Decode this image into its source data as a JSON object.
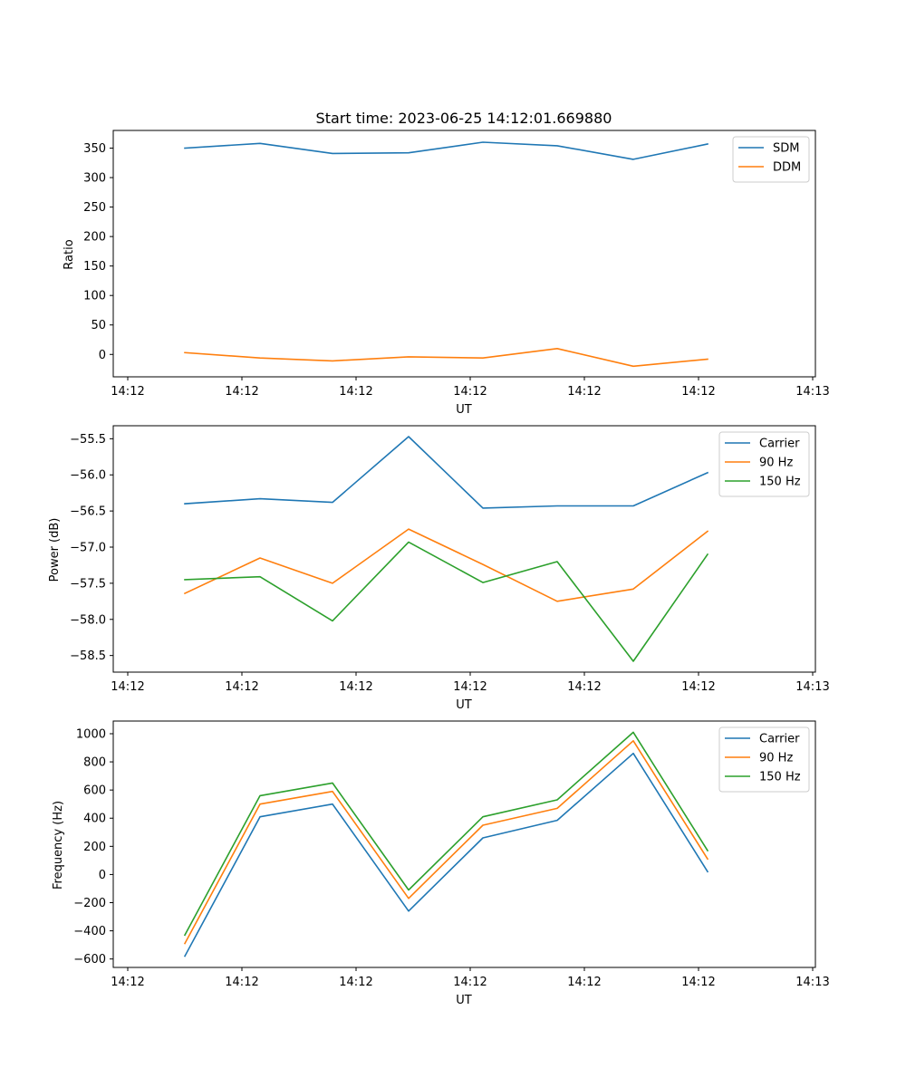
{
  "title": "Start time: 2023-06-25 14:12:01.669880",
  "colors": {
    "blue": "#1f77b4",
    "orange": "#ff7f0e",
    "green": "#2ca02c"
  },
  "chart_data": [
    {
      "type": "line",
      "title": "Start time: 2023-06-25 14:12:01.669880",
      "xlabel": "UT",
      "ylabel": "Ratio",
      "x_tick_labels": [
        "14:12",
        "14:12",
        "14:12",
        "14:12",
        "14:12",
        "14:12",
        "14:13"
      ],
      "yticks": [
        0,
        50,
        100,
        150,
        200,
        250,
        300,
        350
      ],
      "ylim": [
        -38,
        380
      ],
      "legend_position": "top-right",
      "grid": false,
      "series": [
        {
          "name": "SDM",
          "color": "#1f77b4",
          "values": [
            350,
            358,
            341,
            342,
            360,
            354,
            331,
            357
          ]
        },
        {
          "name": "DDM",
          "color": "#ff7f0e",
          "values": [
            3,
            -6,
            -11,
            -4,
            -6,
            10,
            -20,
            -8
          ]
        }
      ]
    },
    {
      "type": "line",
      "xlabel": "UT",
      "ylabel": "Power (dB)",
      "x_tick_labels": [
        "14:12",
        "14:12",
        "14:12",
        "14:12",
        "14:12",
        "14:12",
        "14:13"
      ],
      "yticks": [
        -55.5,
        -56.0,
        -56.5,
        -57.0,
        -57.5,
        -58.0,
        -58.5
      ],
      "ylim": [
        -58.73,
        -55.32
      ],
      "legend_position": "top-right",
      "grid": false,
      "series": [
        {
          "name": "Carrier",
          "color": "#1f77b4",
          "values": [
            -56.4,
            -56.33,
            -56.38,
            -55.47,
            -56.46,
            -56.43,
            -56.43,
            -55.97
          ]
        },
        {
          "name": "90 Hz",
          "color": "#ff7f0e",
          "values": [
            -57.64,
            -57.15,
            -57.5,
            -56.75,
            -57.24,
            -57.75,
            -57.58,
            -56.78
          ]
        },
        {
          "name": "150 Hz",
          "color": "#2ca02c",
          "values": [
            -57.45,
            -57.41,
            -58.02,
            -56.93,
            -57.49,
            -57.2,
            -58.58,
            -57.1
          ]
        }
      ]
    },
    {
      "type": "line",
      "xlabel": "UT",
      "ylabel": "Frequency (Hz)",
      "x_tick_labels": [
        "14:12",
        "14:12",
        "14:12",
        "14:12",
        "14:12",
        "14:12",
        "14:13"
      ],
      "yticks": [
        1000,
        800,
        600,
        400,
        200,
        0,
        -200,
        -400,
        -600
      ],
      "ylim": [
        -660,
        1090
      ],
      "legend_position": "top-right",
      "grid": false,
      "series": [
        {
          "name": "Carrier",
          "color": "#1f77b4",
          "values": [
            -580,
            410,
            500,
            -260,
            260,
            385,
            860,
            20
          ]
        },
        {
          "name": "90 Hz",
          "color": "#ff7f0e",
          "values": [
            -490,
            500,
            590,
            -170,
            350,
            470,
            950,
            110
          ]
        },
        {
          "name": "150 Hz",
          "color": "#2ca02c",
          "values": [
            -430,
            560,
            650,
            -110,
            410,
            530,
            1010,
            170
          ]
        }
      ]
    }
  ]
}
